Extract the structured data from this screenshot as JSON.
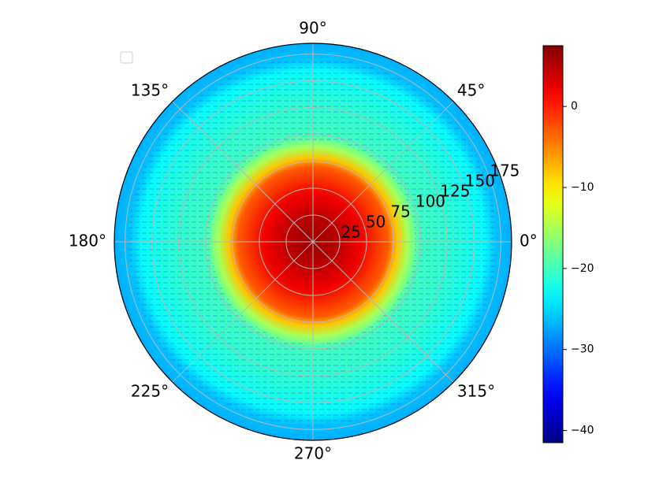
{
  "chart_data": {
    "type": "heatmap",
    "projection": "polar",
    "angle_ticks": [
      {
        "deg": 0,
        "label": "0°"
      },
      {
        "deg": 45,
        "label": "45°"
      },
      {
        "deg": 90,
        "label": "90°"
      },
      {
        "deg": 135,
        "label": "135°"
      },
      {
        "deg": 180,
        "label": "180°"
      },
      {
        "deg": 225,
        "label": "225°"
      },
      {
        "deg": 270,
        "label": "270°"
      },
      {
        "deg": 315,
        "label": "315°"
      }
    ],
    "radial_ticks": [
      {
        "value": 25,
        "label": "25"
      },
      {
        "value": 50,
        "label": "50"
      },
      {
        "value": 75,
        "label": "75"
      },
      {
        "value": 100,
        "label": "100"
      },
      {
        "value": 125,
        "label": "125"
      },
      {
        "value": 150,
        "label": "150"
      },
      {
        "value": 175,
        "label": "175"
      }
    ],
    "rlim": [
      0,
      185
    ],
    "grid": true,
    "legend": {
      "placement": "upper-left",
      "entries": []
    },
    "colormap": "jet",
    "colorbar": {
      "range": [
        -41.5,
        7.5
      ],
      "ticks": [
        {
          "value": 0,
          "label": "0"
        },
        {
          "value": -10,
          "label": "−10"
        },
        {
          "value": -20,
          "label": "−20"
        },
        {
          "value": -30,
          "label": "−30"
        },
        {
          "value": -40,
          "label": "−40"
        }
      ]
    },
    "radial_profile": [
      {
        "r": 0,
        "value": 6
      },
      {
        "r": 20,
        "value": 5
      },
      {
        "r": 45,
        "value": 2
      },
      {
        "r": 70,
        "value": -3
      },
      {
        "r": 78,
        "value": -8
      },
      {
        "r": 88,
        "value": -15
      },
      {
        "r": 100,
        "value": -20
      },
      {
        "r": 130,
        "value": -21
      },
      {
        "r": 160,
        "value": -23
      },
      {
        "r": 170,
        "value": -26
      },
      {
        "r": 185,
        "value": -27
      }
    ],
    "outer_fill_value": -27
  }
}
